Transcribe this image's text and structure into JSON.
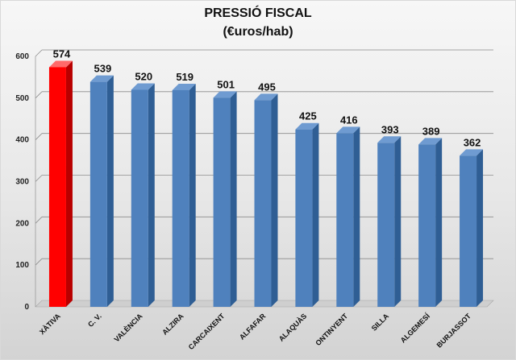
{
  "chart_data": {
    "type": "bar",
    "title": "PRESSIÓ FISCAL",
    "subtitle": "(€uros/hab)",
    "xlabel": "",
    "ylabel": "",
    "categories": [
      "XÀTIVA",
      "C. V.",
      "VALÈNCIA",
      "ALZIRA",
      "CARCAIXENT",
      "ALFAFAR",
      "ALAQUÀS",
      "ONTINYENT",
      "SILLA",
      "ALGEMESÍ",
      "BURJASSOT"
    ],
    "values": [
      574,
      539,
      520,
      519,
      501,
      495,
      425,
      416,
      393,
      389,
      362
    ],
    "ylim": [
      0,
      600
    ],
    "yticks": [
      0,
      100,
      200,
      300,
      400,
      500,
      600
    ],
    "grid": true,
    "data_labels": true,
    "highlight_index": 0
  },
  "colors": {
    "highlight_front": "#ff0000",
    "highlight_side": "#b80000",
    "highlight_top": "#ff6a6a",
    "bar_front": "#4f81bd",
    "bar_side": "#2f5e94",
    "bar_top": "#6f9bd1",
    "gridline": "#8c8c8c",
    "floor": "#cfcfcf"
  }
}
